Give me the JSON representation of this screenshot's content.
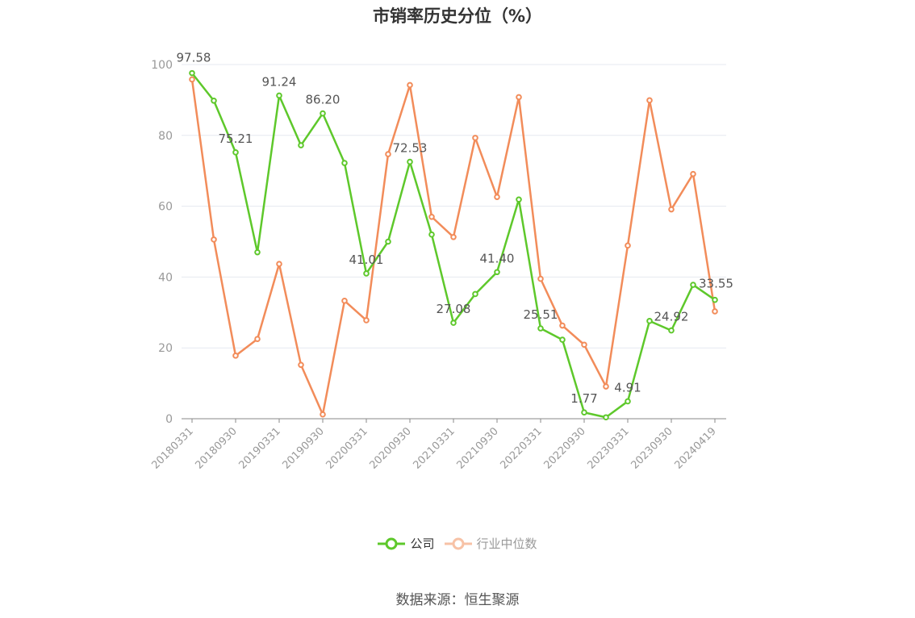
{
  "chart_data": {
    "type": "line",
    "title": "市销率历史分位（%）",
    "ylim": [
      0,
      100
    ],
    "yticks": [
      0,
      20,
      40,
      60,
      80,
      100
    ],
    "x": [
      "20180331",
      "20180630",
      "20180930",
      "20181231",
      "20190331",
      "20190630",
      "20190930",
      "20191231",
      "20200331",
      "20200630",
      "20200930",
      "20201231",
      "20210331",
      "20210630",
      "20210930",
      "20211231",
      "20220331",
      "20220630",
      "20220930",
      "20221231",
      "20230331",
      "20230630",
      "20230930",
      "20231231",
      "20240419"
    ],
    "xtick_labels": [
      "20180331",
      "20180930",
      "20190331",
      "20190930",
      "20200331",
      "20200930",
      "20210331",
      "20210930",
      "20220331",
      "20220930",
      "20230331",
      "20230930",
      "20240419"
    ],
    "series": [
      {
        "name": "公司",
        "color": "#5ec82b",
        "values": [
          97.58,
          89.8,
          75.21,
          47.0,
          91.24,
          77.2,
          86.2,
          72.2,
          41.01,
          50.0,
          72.53,
          52.0,
          27.08,
          35.2,
          41.4,
          61.9,
          25.51,
          22.3,
          1.77,
          0.4,
          4.91,
          27.6,
          24.92,
          37.8,
          33.55
        ],
        "labels": {
          "0": "97.58",
          "2": "75.21",
          "4": "91.24",
          "6": "86.20",
          "8": "41.01",
          "10": "72.53",
          "12": "27.08",
          "14": "41.40",
          "16": "25.51",
          "18": "1.77",
          "20": "4.91",
          "22": "24.92",
          "24": "33.55"
        }
      },
      {
        "name": "行业中位数",
        "color": "#f28c5a",
        "values": [
          95.8,
          50.6,
          17.8,
          22.5,
          43.7,
          15.2,
          1.2,
          33.3,
          27.8,
          74.7,
          94.2,
          57.0,
          51.3,
          79.3,
          62.6,
          90.8,
          39.5,
          26.3,
          20.9,
          9.1,
          48.9,
          89.9,
          59.1,
          69.1,
          30.3
        ]
      }
    ],
    "legend": "bottom-center",
    "grid": true
  },
  "legend": {
    "company": "公司",
    "industry": "行业中位数"
  },
  "source": "数据来源：恒生聚源"
}
